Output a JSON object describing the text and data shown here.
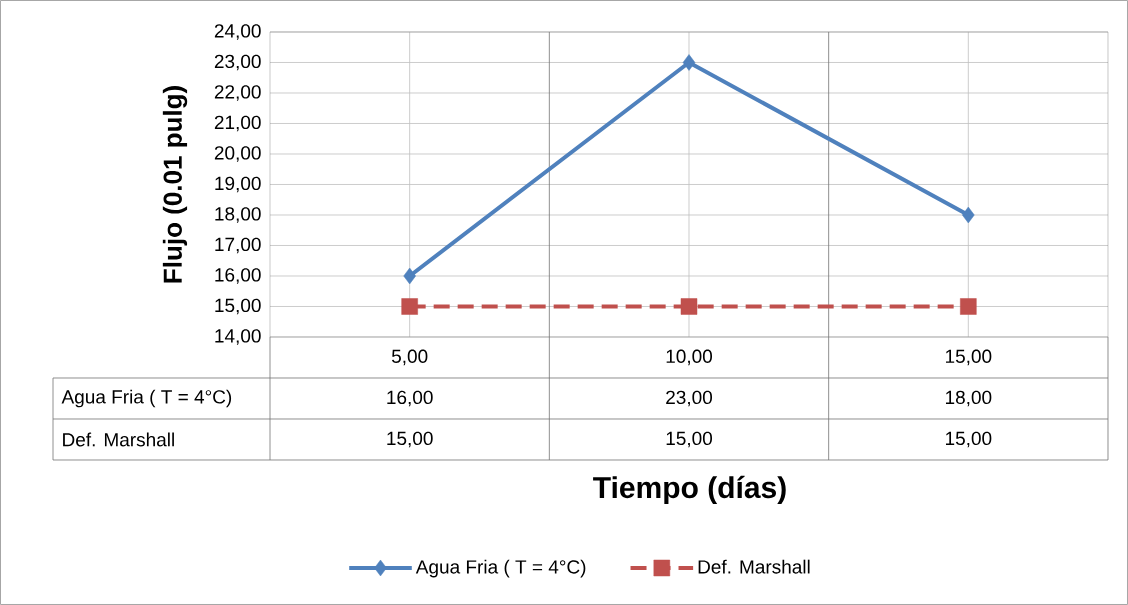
{
  "chart_data": {
    "type": "line",
    "xlabel": "Tiempo (días)",
    "ylabel": "Flujo (0.01 pulg)",
    "categories": [
      "5,00",
      "10,00",
      "15,00"
    ],
    "series": [
      {
        "name": "Agua Fria ( T = 4°C)",
        "color": "#4f81bd",
        "values": [
          16,
          23,
          18
        ],
        "value_labels": [
          "16,00",
          "23,00",
          "18,00"
        ],
        "marker": "diamond",
        "line_style": "solid"
      },
      {
        "name": "Def. Marshall",
        "color": "#c0504d",
        "values": [
          15,
          15,
          15
        ],
        "value_labels": [
          "15,00",
          "15,00",
          "15,00"
        ],
        "marker": "square",
        "line_style": "dashed"
      }
    ],
    "ylim": [
      14,
      24
    ],
    "yticks": [
      {
        "value": 14,
        "label": "14,00"
      },
      {
        "value": 15,
        "label": "15,00"
      },
      {
        "value": 16,
        "label": "16,00"
      },
      {
        "value": 17,
        "label": "17,00"
      },
      {
        "value": 18,
        "label": "18,00"
      },
      {
        "value": 19,
        "label": "19,00"
      },
      {
        "value": 20,
        "label": "20,00"
      },
      {
        "value": 21,
        "label": "21,00"
      },
      {
        "value": 22,
        "label": "22,00"
      },
      {
        "value": 23,
        "label": "23,00"
      },
      {
        "value": 24,
        "label": "24,00"
      }
    ],
    "grid": true,
    "legend": "bottom"
  }
}
